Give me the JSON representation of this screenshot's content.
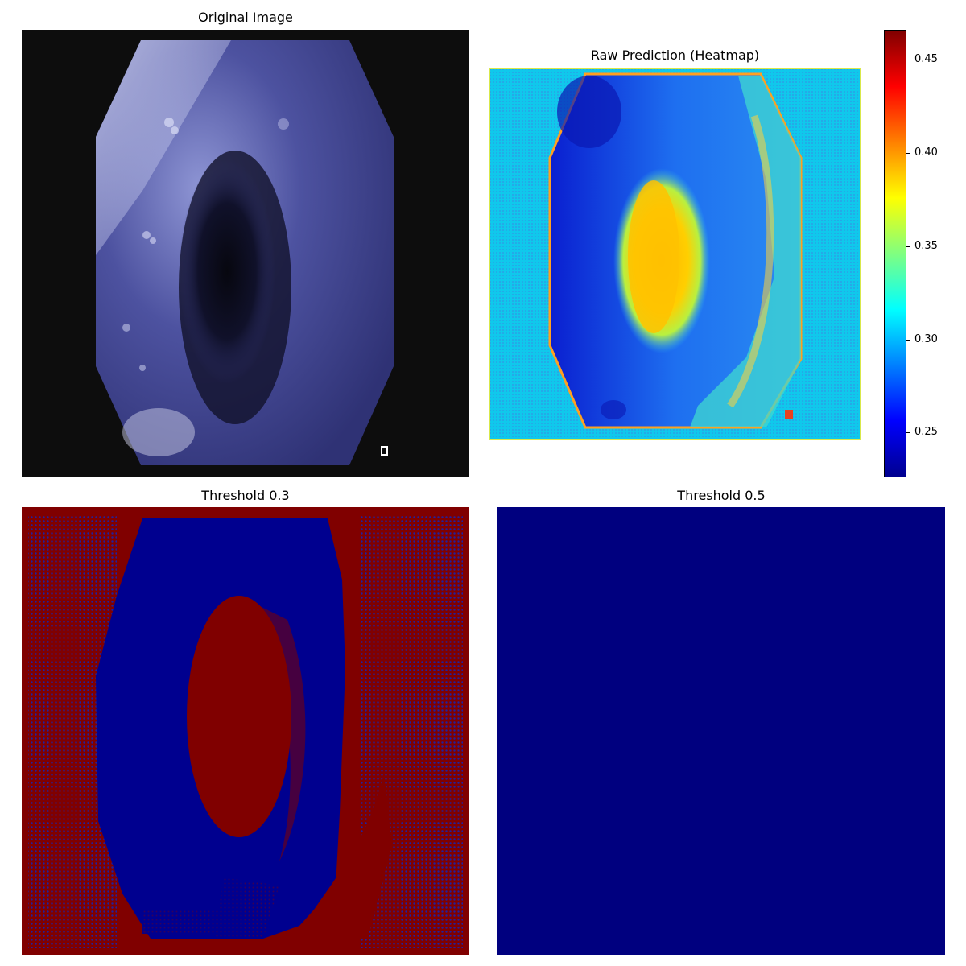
{
  "panels": {
    "original": {
      "title": "Original Image"
    },
    "heatmap": {
      "title": "Raw Prediction (Heatmap)"
    },
    "threshold_low": {
      "title": "Threshold 0.3"
    },
    "threshold_high": {
      "title": "Threshold 0.5"
    }
  },
  "colorbar": {
    "colormap": "jet",
    "range": [
      0.226,
      0.466
    ],
    "ticks": [
      {
        "value": 0.45,
        "label": "0.45"
      },
      {
        "value": 0.4,
        "label": "0.40"
      },
      {
        "value": 0.35,
        "label": "0.35"
      },
      {
        "value": 0.3,
        "label": "0.30"
      },
      {
        "value": 0.25,
        "label": "0.25"
      }
    ]
  },
  "colors": {
    "mask_positive": "#800000",
    "mask_negative": "#00008f",
    "background": "#0d0d0d"
  }
}
